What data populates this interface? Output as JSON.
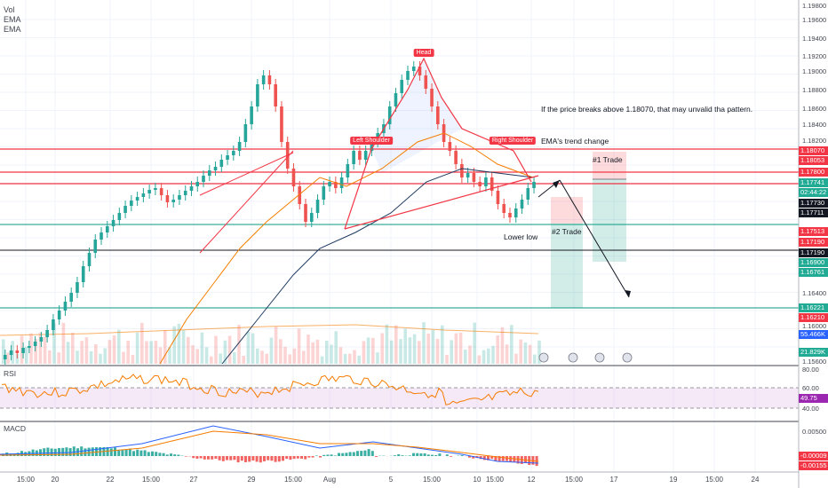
{
  "legend": {
    "line1": "Vol",
    "line2": "EMA",
    "line3": "EMA"
  },
  "pattern_labels": {
    "head": "Head",
    "left_shoulder": "Left Shoulder",
    "right_shoulder": "Right Shoulder"
  },
  "annotations": {
    "breakout_note": "If the price breaks above 1.18070, that may unvalid tha pattern.",
    "ema_note": "EMA's trend change",
    "lower_low": "Lower low",
    "trade1": "#1 Trade",
    "trade2": "#2 Trade"
  },
  "price_axis": {
    "ticks": [
      "1.19800",
      "1.19600",
      "1.19400",
      "1.19200",
      "1.19000",
      "1.18800",
      "1.18600",
      "1.18400",
      "1.18200",
      "1.18000",
      "1.17600",
      "1.17400",
      "1.17200",
      "1.17000",
      "1.16800",
      "1.16600",
      "1.16400",
      "1.16200",
      "1.16000",
      "1.15800",
      "1.15600"
    ],
    "tags": [
      {
        "text": "1.18070",
        "color": "#f23645"
      },
      {
        "text": "1.18053",
        "color": "#f23645"
      },
      {
        "text": "1.17800",
        "color": "#f23645"
      },
      {
        "text": "1.17741",
        "color": "#22ab94"
      },
      {
        "text": "02:44:22",
        "color": "#22ab94"
      },
      {
        "text": "1.17730",
        "color": "#131722"
      },
      {
        "text": "1.17711",
        "color": "#131722"
      },
      {
        "text": "1.17513",
        "color": "#f23645"
      },
      {
        "text": "1.17190",
        "color": "#f23645"
      },
      {
        "text": "1.17190",
        "color": "#131722"
      },
      {
        "text": "1.16900",
        "color": "#22ab94"
      },
      {
        "text": "1.16761",
        "color": "#22ab94"
      },
      {
        "text": "1.16221",
        "color": "#22ab94"
      },
      {
        "text": "1.16210",
        "color": "#f23645"
      },
      {
        "text": "55.466K",
        "color": "#2962ff"
      },
      {
        "text": "21.829K",
        "color": "#22ab94"
      }
    ]
  },
  "rsi": {
    "label": "RSI",
    "ticks": [
      "80.00",
      "60.00",
      "40.00"
    ],
    "value_tag": "49.75"
  },
  "macd": {
    "label": "MACD",
    "ticks": [
      "0.00500",
      "-0.00009",
      "-0.00155"
    ]
  },
  "time_axis": [
    "15:00",
    "20",
    "22",
    "15:00",
    "27",
    "29",
    "15:00",
    "Aug",
    "5",
    "15:00",
    "10",
    "15:00",
    "12",
    "15:00",
    "17",
    "19",
    "15:00",
    "24"
  ],
  "colors": {
    "up": "#26a69a",
    "down": "#ef5350",
    "ema_fast": "#f57c00",
    "ema_slow": "#1e3a5f"
  }
}
